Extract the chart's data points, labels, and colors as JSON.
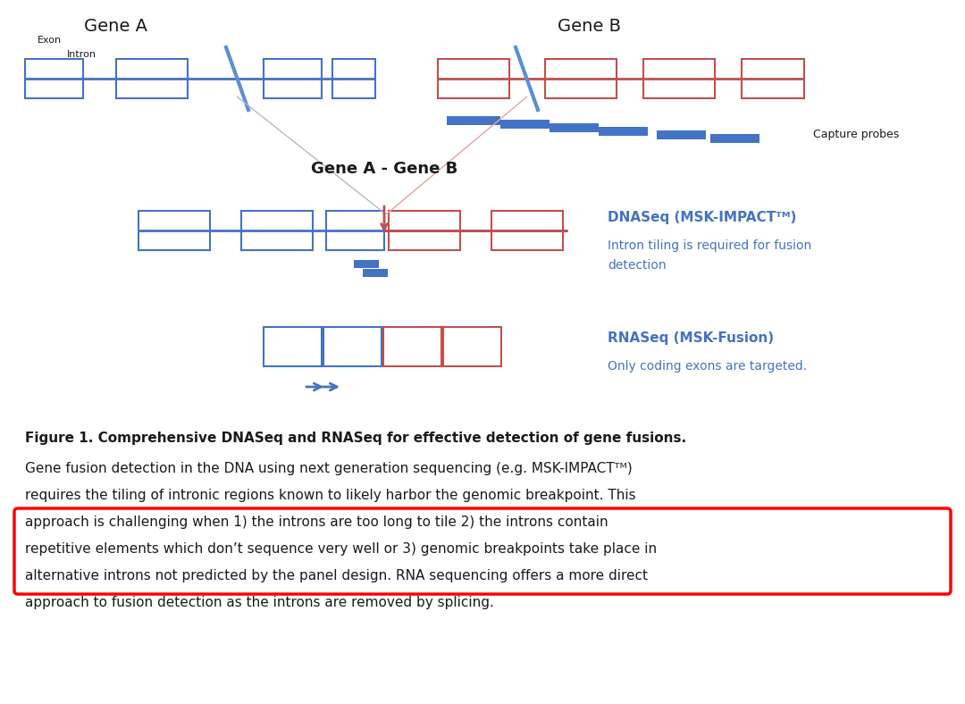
{
  "background_color": "#ffffff",
  "title_gene_a": "Gene A",
  "title_gene_b": "Gene B",
  "label_gene_ab": "Gene A - Gene B",
  "label_exon": "Exon",
  "label_intron": "Intron",
  "label_capture": "Capture probes",
  "color_blue": "#4472C4",
  "color_red": "#C0504D",
  "color_text_blue": "#4472C4",
  "color_dark": "#1a1a1a",
  "color_gray": "#808080",
  "color_light_red": "#E8A09E",
  "dnaseq_line1": "DNASeq (MSK-IMPACTᵀᴹ)",
  "dnaseq_line2": "Intron tiling is required for fusion",
  "dnaseq_line3": "detection",
  "rnaseq_line1": "RNASeq (MSK-Fusion)",
  "rnaseq_line2": "Only coding exons are targeted.",
  "caption_bold": "Figure 1. Comprehensive DNASeq and RNASeq for effective detection of gene fusions.",
  "caption_line1": "Gene fusion detection in the DNA using next generation sequencing (e.g. MSK-IMPACTᵀᴹ)",
  "caption_line2": "requires the tiling of intronic regions known to likely harbor the genomic breakpoint. This",
  "caption_line3": "approach is challenging when 1) the introns are too long to tile 2) the introns contain",
  "caption_line4": "repetitive elements which don’t sequence very well or 3) genomic breakpoints take place in",
  "caption_line5": "alternative introns not predicted by the panel design. RNA sequencing offers a more direct",
  "caption_line6": "approach to fusion detection as the introns are removed by splicing."
}
